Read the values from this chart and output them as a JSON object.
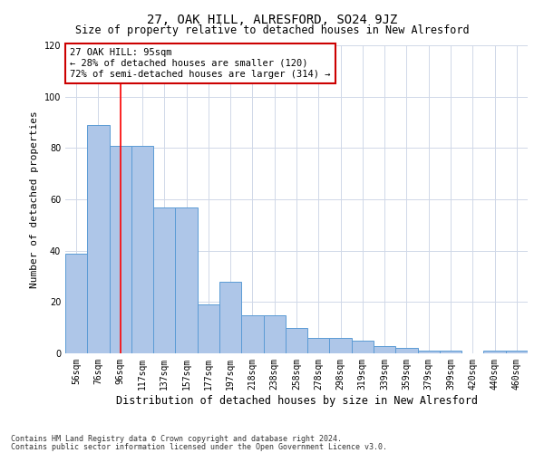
{
  "title": "27, OAK HILL, ALRESFORD, SO24 9JZ",
  "subtitle": "Size of property relative to detached houses in New Alresford",
  "xlabel": "Distribution of detached houses by size in New Alresford",
  "ylabel": "Number of detached properties",
  "categories": [
    "56sqm",
    "76sqm",
    "96sqm",
    "117sqm",
    "137sqm",
    "157sqm",
    "177sqm",
    "197sqm",
    "218sqm",
    "238sqm",
    "258sqm",
    "278sqm",
    "298sqm",
    "319sqm",
    "339sqm",
    "359sqm",
    "379sqm",
    "399sqm",
    "420sqm",
    "440sqm",
    "460sqm"
  ],
  "values": [
    39,
    89,
    81,
    81,
    57,
    57,
    19,
    28,
    15,
    15,
    10,
    6,
    6,
    5,
    3,
    2,
    1,
    1,
    0,
    1,
    1
  ],
  "bar_color": "#aec6e8",
  "bar_edge_color": "#5b9bd5",
  "highlight_index": 2,
  "highlight_color": "#ff0000",
  "ylim": [
    0,
    120
  ],
  "yticks": [
    0,
    20,
    40,
    60,
    80,
    100,
    120
  ],
  "annotation_text": "27 OAK HILL: 95sqm\n← 28% of detached houses are smaller (120)\n72% of semi-detached houses are larger (314) →",
  "annotation_box_color": "#ffffff",
  "annotation_box_edge": "#cc0000",
  "footer_line1": "Contains HM Land Registry data © Crown copyright and database right 2024.",
  "footer_line2": "Contains public sector information licensed under the Open Government Licence v3.0.",
  "grid_color": "#d0d8e8",
  "background_color": "#ffffff",
  "title_fontsize": 10,
  "subtitle_fontsize": 8.5,
  "ylabel_fontsize": 8,
  "xlabel_fontsize": 8.5,
  "tick_fontsize": 7,
  "annotation_fontsize": 7.5,
  "footer_fontsize": 6
}
